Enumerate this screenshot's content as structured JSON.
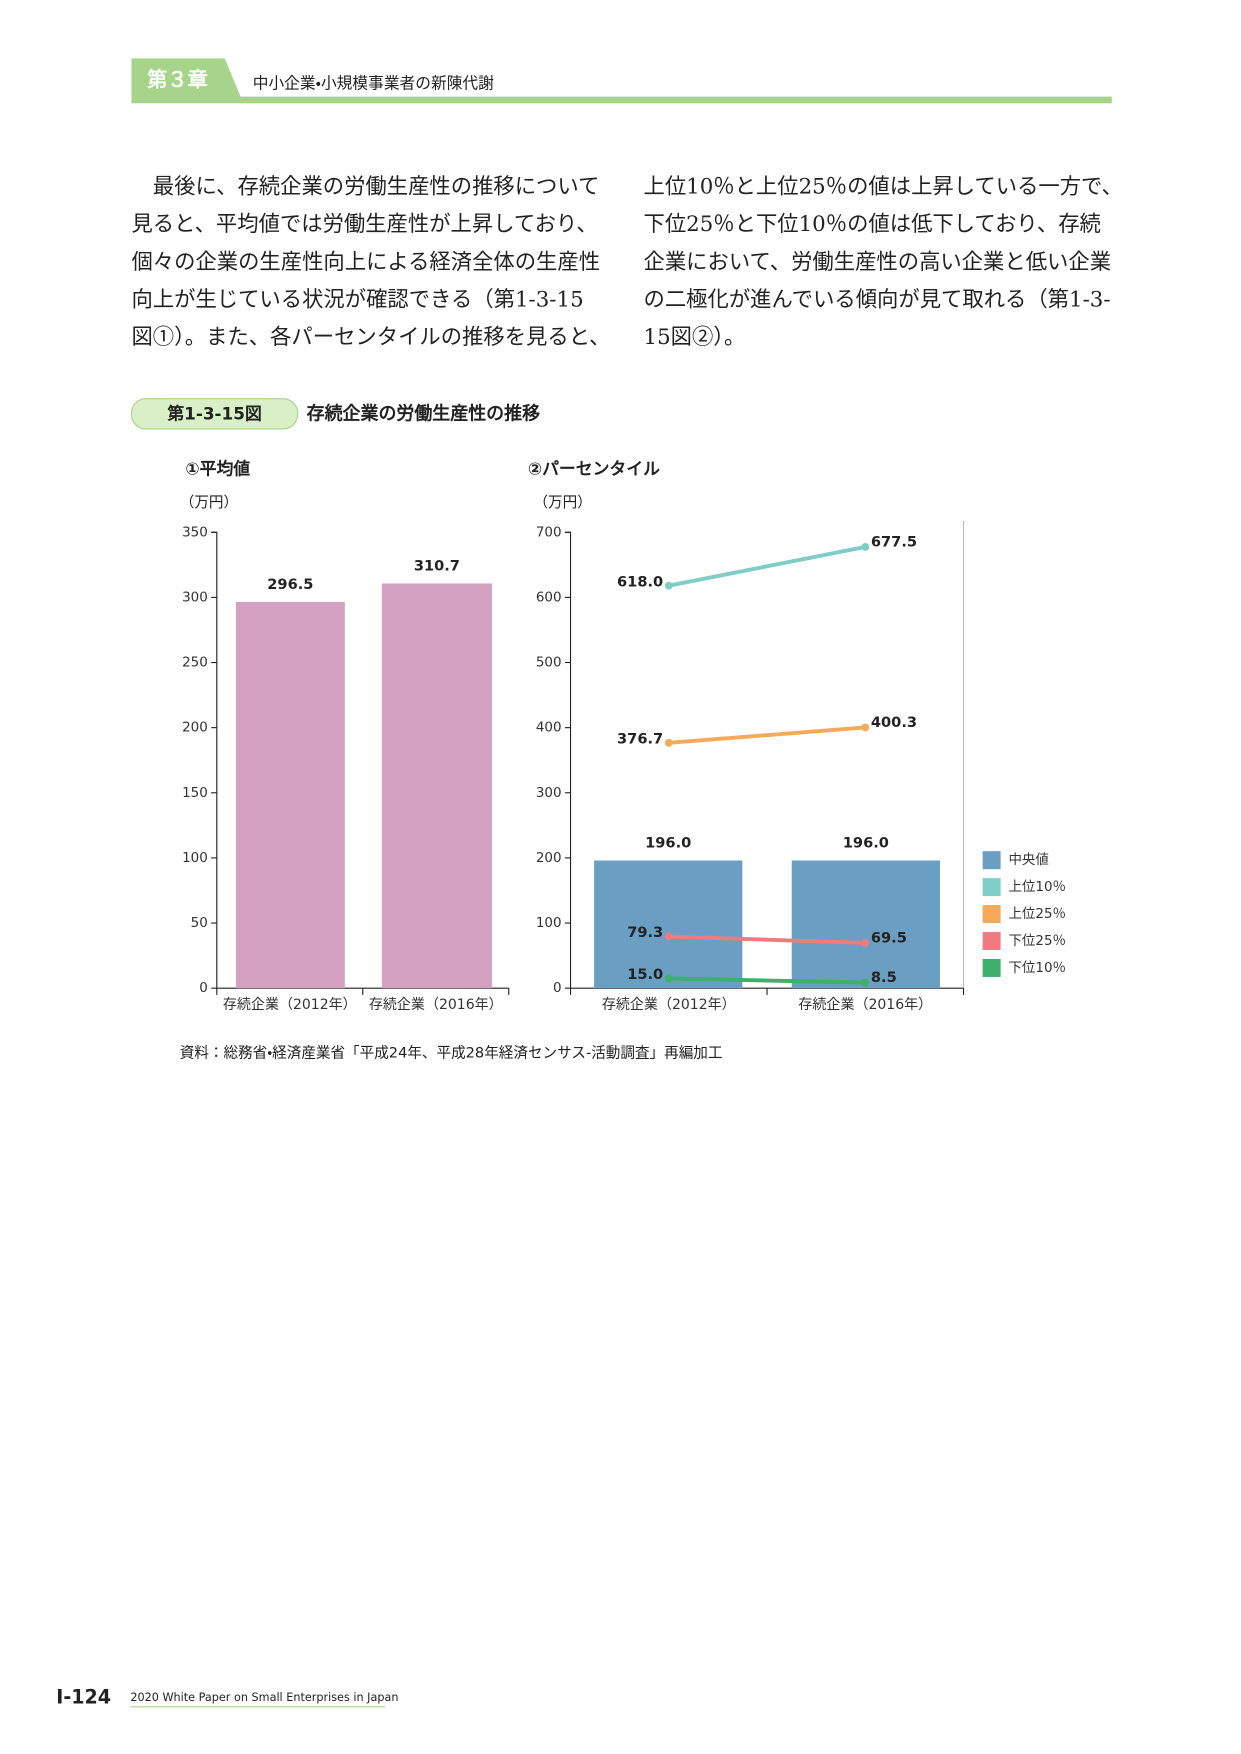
{
  "header": {
    "chapter": "第３章",
    "title": "中小企業・小規模事業者の新陳代謝"
  },
  "body": {
    "left": [
      "　最後に、存続企業の労働生産性の推移について",
      "見ると、平均値では労働生産性が上昇しており、",
      "個々の企業の生産性向上による経済全体の生産性",
      "向上が生じている状況が確認できる（第1-3-15",
      "図①）。また、各パーセンタイルの推移を見ると、"
    ],
    "right": [
      "上位10％と上位25％の値は上昇している一方で、",
      "下位25％と下位10％の値は低下しており、存続",
      "企業において、労働生産性の高い企業と低い企業",
      "の二極化が進んでいる傾向が見て取れる（第1-3-",
      "15図②）。"
    ]
  },
  "figure": {
    "number": "第1-3-15図",
    "title": "存続企業の労働生産性の推移",
    "source": "資料：総務省・経済産業省「平成24年、平成28年経済センサス‐活動調査」再編加工"
  },
  "chart_data": [
    {
      "type": "bar",
      "title": "①平均値",
      "y_label": "（万円）",
      "categories": [
        "存続企業（2012年）",
        "存続企業（2016年）"
      ],
      "values": [
        296.5,
        310.7
      ],
      "color": "#d4a2c0",
      "ylim": [
        0,
        350
      ],
      "yticks": [
        0,
        50,
        100,
        150,
        200,
        250,
        300,
        350
      ]
    },
    {
      "type": "combo",
      "title": "②パーセンタイル",
      "y_label": "（万円）",
      "categories": [
        "存続企業（2012年）",
        "存続企業（2016年）"
      ],
      "series": [
        {
          "name": "中央値",
          "kind": "bar",
          "color": "#6a9fc3",
          "values": [
            196,
            196
          ],
          "value_labels": [
            "196.0",
            "196.0"
          ]
        },
        {
          "name": "上位10％",
          "kind": "line",
          "color": "#7fcdc6",
          "values": [
            618,
            677.5
          ],
          "value_labels": [
            "618.0",
            "677.5"
          ]
        },
        {
          "name": "上位25％",
          "kind": "line",
          "color": "#f5a95a",
          "values": [
            376.7,
            400.3
          ],
          "value_labels": [
            "376.7",
            "400.3"
          ]
        },
        {
          "name": "下位25％",
          "kind": "line",
          "color": "#ee7b7f",
          "values": [
            79.3,
            69.5
          ],
          "value_labels": [
            "79.3",
            "69.5"
          ]
        },
        {
          "name": "下位10％",
          "kind": "line",
          "color": "#3db06b",
          "values": [
            15,
            8.5
          ],
          "value_labels": [
            "15.0",
            "8.5"
          ]
        }
      ],
      "ylim": [
        0,
        700
      ],
      "yticks": [
        0,
        100,
        200,
        300,
        400,
        500,
        600,
        700
      ],
      "legend": "right"
    }
  ],
  "footer": {
    "page": "Ⅰ-124",
    "publication": "2020 White Paper on Small Enterprises in Japan"
  }
}
